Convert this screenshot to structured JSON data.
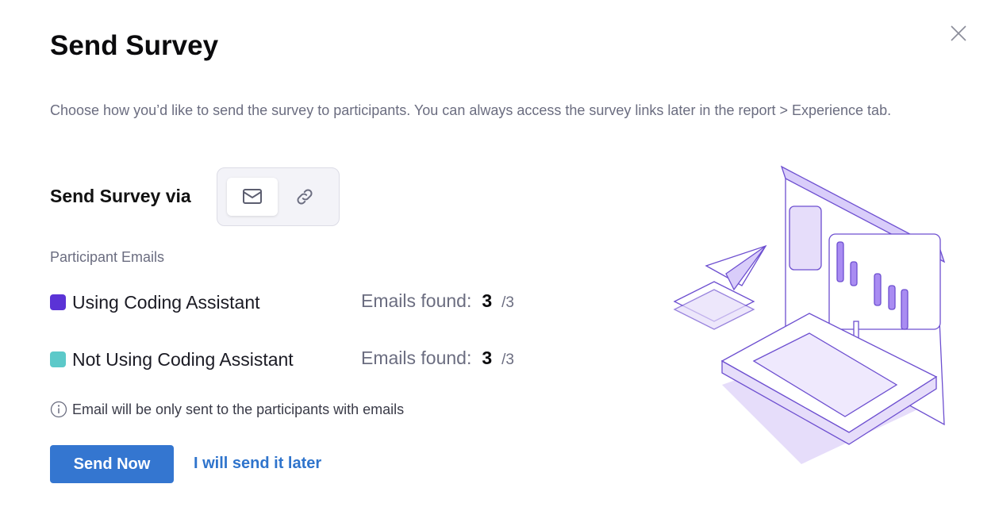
{
  "dialog": {
    "title": "Send Survey",
    "description": "Choose how you’d like to send the survey to participants. You can always access the survey links later in the report > Experience tab.",
    "send_via_label": "Send Survey via",
    "send_via_options": [
      {
        "icon": "mail-icon",
        "selected": true
      },
      {
        "icon": "link-icon",
        "selected": false
      }
    ],
    "participant_emails_label": "Participant Emails",
    "groups": [
      {
        "name": "Using Coding Assistant",
        "color": "#5b33d6",
        "found_label": "Emails found:",
        "found": "3",
        "total": "/3"
      },
      {
        "name": "Not Using Coding Assistant",
        "color": "#5cc9c9",
        "found_label": "Emails found:",
        "found": "3",
        "total": "/3"
      }
    ],
    "note": "Email will be only sent to the participants with emails",
    "send_now": "Send Now",
    "send_later": "I will send it later",
    "accent": "#3476d0"
  }
}
